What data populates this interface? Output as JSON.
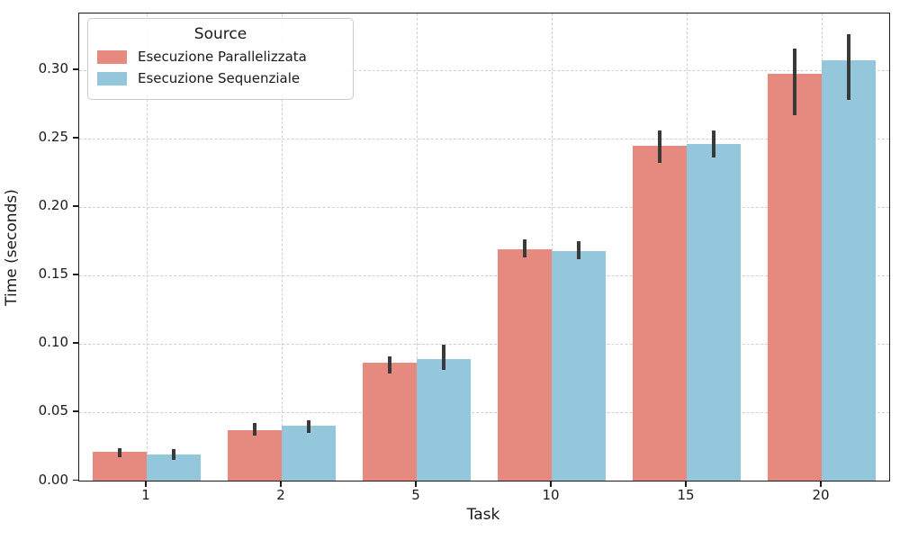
{
  "chart_data": {
    "type": "bar",
    "title": "",
    "xlabel": "Task",
    "ylabel": "Time (seconds)",
    "legend_title": "Source",
    "legend_position": "upper left",
    "grid": "dashed, both axes",
    "categories": [
      "1",
      "2",
      "5",
      "10",
      "15",
      "20"
    ],
    "series": [
      {
        "name": "Esecuzione Parallelizzata",
        "color": "#E6897E",
        "values": [
          0.021,
          0.037,
          0.086,
          0.169,
          0.245,
          0.297
        ],
        "err_low": [
          0.017,
          0.033,
          0.078,
          0.163,
          0.232,
          0.267
        ],
        "err_high": [
          0.024,
          0.042,
          0.091,
          0.176,
          0.256,
          0.316
        ]
      },
      {
        "name": "Esecuzione Sequenziale",
        "color": "#95C7DC",
        "values": [
          0.019,
          0.04,
          0.089,
          0.168,
          0.246,
          0.307
        ],
        "err_low": [
          0.015,
          0.035,
          0.081,
          0.162,
          0.236,
          0.278
        ],
        "err_high": [
          0.023,
          0.044,
          0.099,
          0.175,
          0.256,
          0.326
        ]
      }
    ],
    "ylim": [
      0,
      0.3414
    ],
    "yticks": [
      0.0,
      0.05,
      0.1,
      0.15,
      0.2,
      0.25,
      0.3
    ],
    "ytick_labels": [
      "0.00",
      "0.05",
      "0.10",
      "0.15",
      "0.20",
      "0.25",
      "0.30"
    ],
    "error_bar_color": "#3a3a3a"
  }
}
